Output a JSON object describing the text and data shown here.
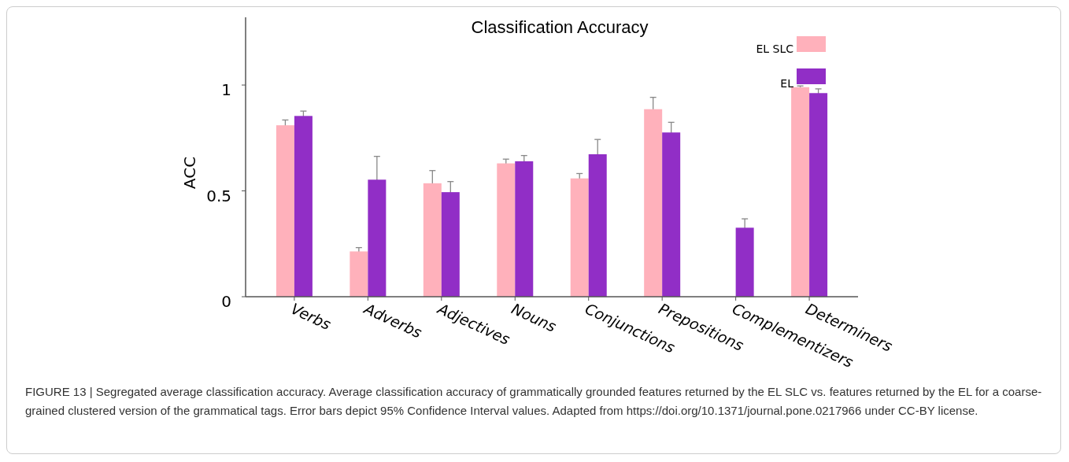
{
  "chart_data": {
    "type": "bar",
    "title": "Classification Accuracy",
    "ylabel": "ACC",
    "categories": [
      "Verbs",
      "Adverbs",
      "Adjectives",
      "Nouns",
      "Conjunctions",
      "Prepositions",
      "Complementizers",
      "Determiners"
    ],
    "series": [
      {
        "name": "EL SLC",
        "color": "#ffb1bb",
        "values": [
          0.81,
          0.214,
          0.536,
          0.63,
          0.559,
          0.886,
          0,
          0.99
        ],
        "errors": [
          0.025,
          0.018,
          0.06,
          0.02,
          0.023,
          0.056,
          null,
          0.006
        ]
      },
      {
        "name": "EL",
        "color": "#912ec6",
        "values": [
          0.854,
          0.553,
          0.494,
          0.64,
          0.673,
          0.776,
          0.326,
          0.962
        ],
        "errors": [
          0.023,
          0.11,
          0.05,
          0.027,
          0.07,
          0.048,
          0.042,
          0.02
        ]
      }
    ],
    "ylim": [
      0,
      1.32
    ],
    "yticks": [
      0,
      0.5,
      1
    ],
    "grid": false,
    "legend": "top right",
    "annotations": [
      "FIGURE 13 | Segregated average classification accuracy. Average classification accuracy of grammatically grounded features returned by the EL SLC vs. features returned by the EL for a coarse-grained clustered version of the grammatical tags. Error bars depict 95% Confidence Interval values. Adapted from https://doi.org/10.1371/journal.pone.0217966 under CC-BY license."
    ]
  }
}
